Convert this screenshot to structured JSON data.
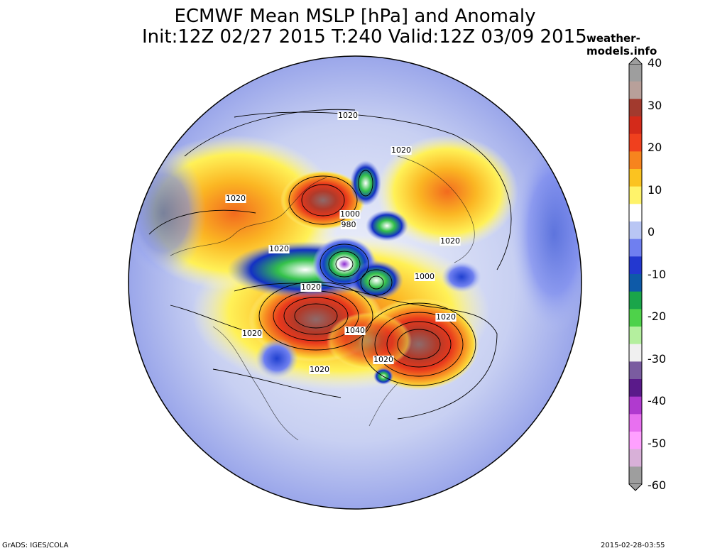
{
  "header": {
    "title_line1": "ECMWF Mean MSLP [hPa] and Anomaly",
    "title_line2": "Init:12Z 02/27 2015 T:240 Valid:12Z 03/09 2015",
    "site": "weather-models.info"
  },
  "footer": {
    "left": "GrADS: IGES/COLA",
    "right": "2015-02-28-03:55"
  },
  "colorbar": {
    "ticks": [
      "40",
      "30",
      "20",
      "10",
      "0",
      "-10",
      "-20",
      "-30",
      "-40",
      "-50",
      "-60"
    ],
    "colors": [
      "#9e9e9e",
      "#b8a09a",
      "#a23a2e",
      "#d42a1a",
      "#f0401e",
      "#f7841e",
      "#fbc320",
      "#fff36a",
      "#ffffff",
      "#b9c6f4",
      "#6f7ff0",
      "#2338d0",
      "#0e5aa8",
      "#1aa54a",
      "#4ed24a",
      "#b4ef9e",
      "#f0f0f0",
      "#7a5ca0",
      "#5a1a8a",
      "#b03acf",
      "#e870f0",
      "#ffa0ff",
      "#d8b0d8",
      "#9e9e9e"
    ]
  },
  "map": {
    "contour_labels": [
      "1020",
      "1020",
      "1020",
      "1020",
      "1000",
      "980",
      "1020",
      "1000",
      "1020",
      "1040",
      "1020",
      "1020",
      "1020",
      "1020"
    ]
  }
}
